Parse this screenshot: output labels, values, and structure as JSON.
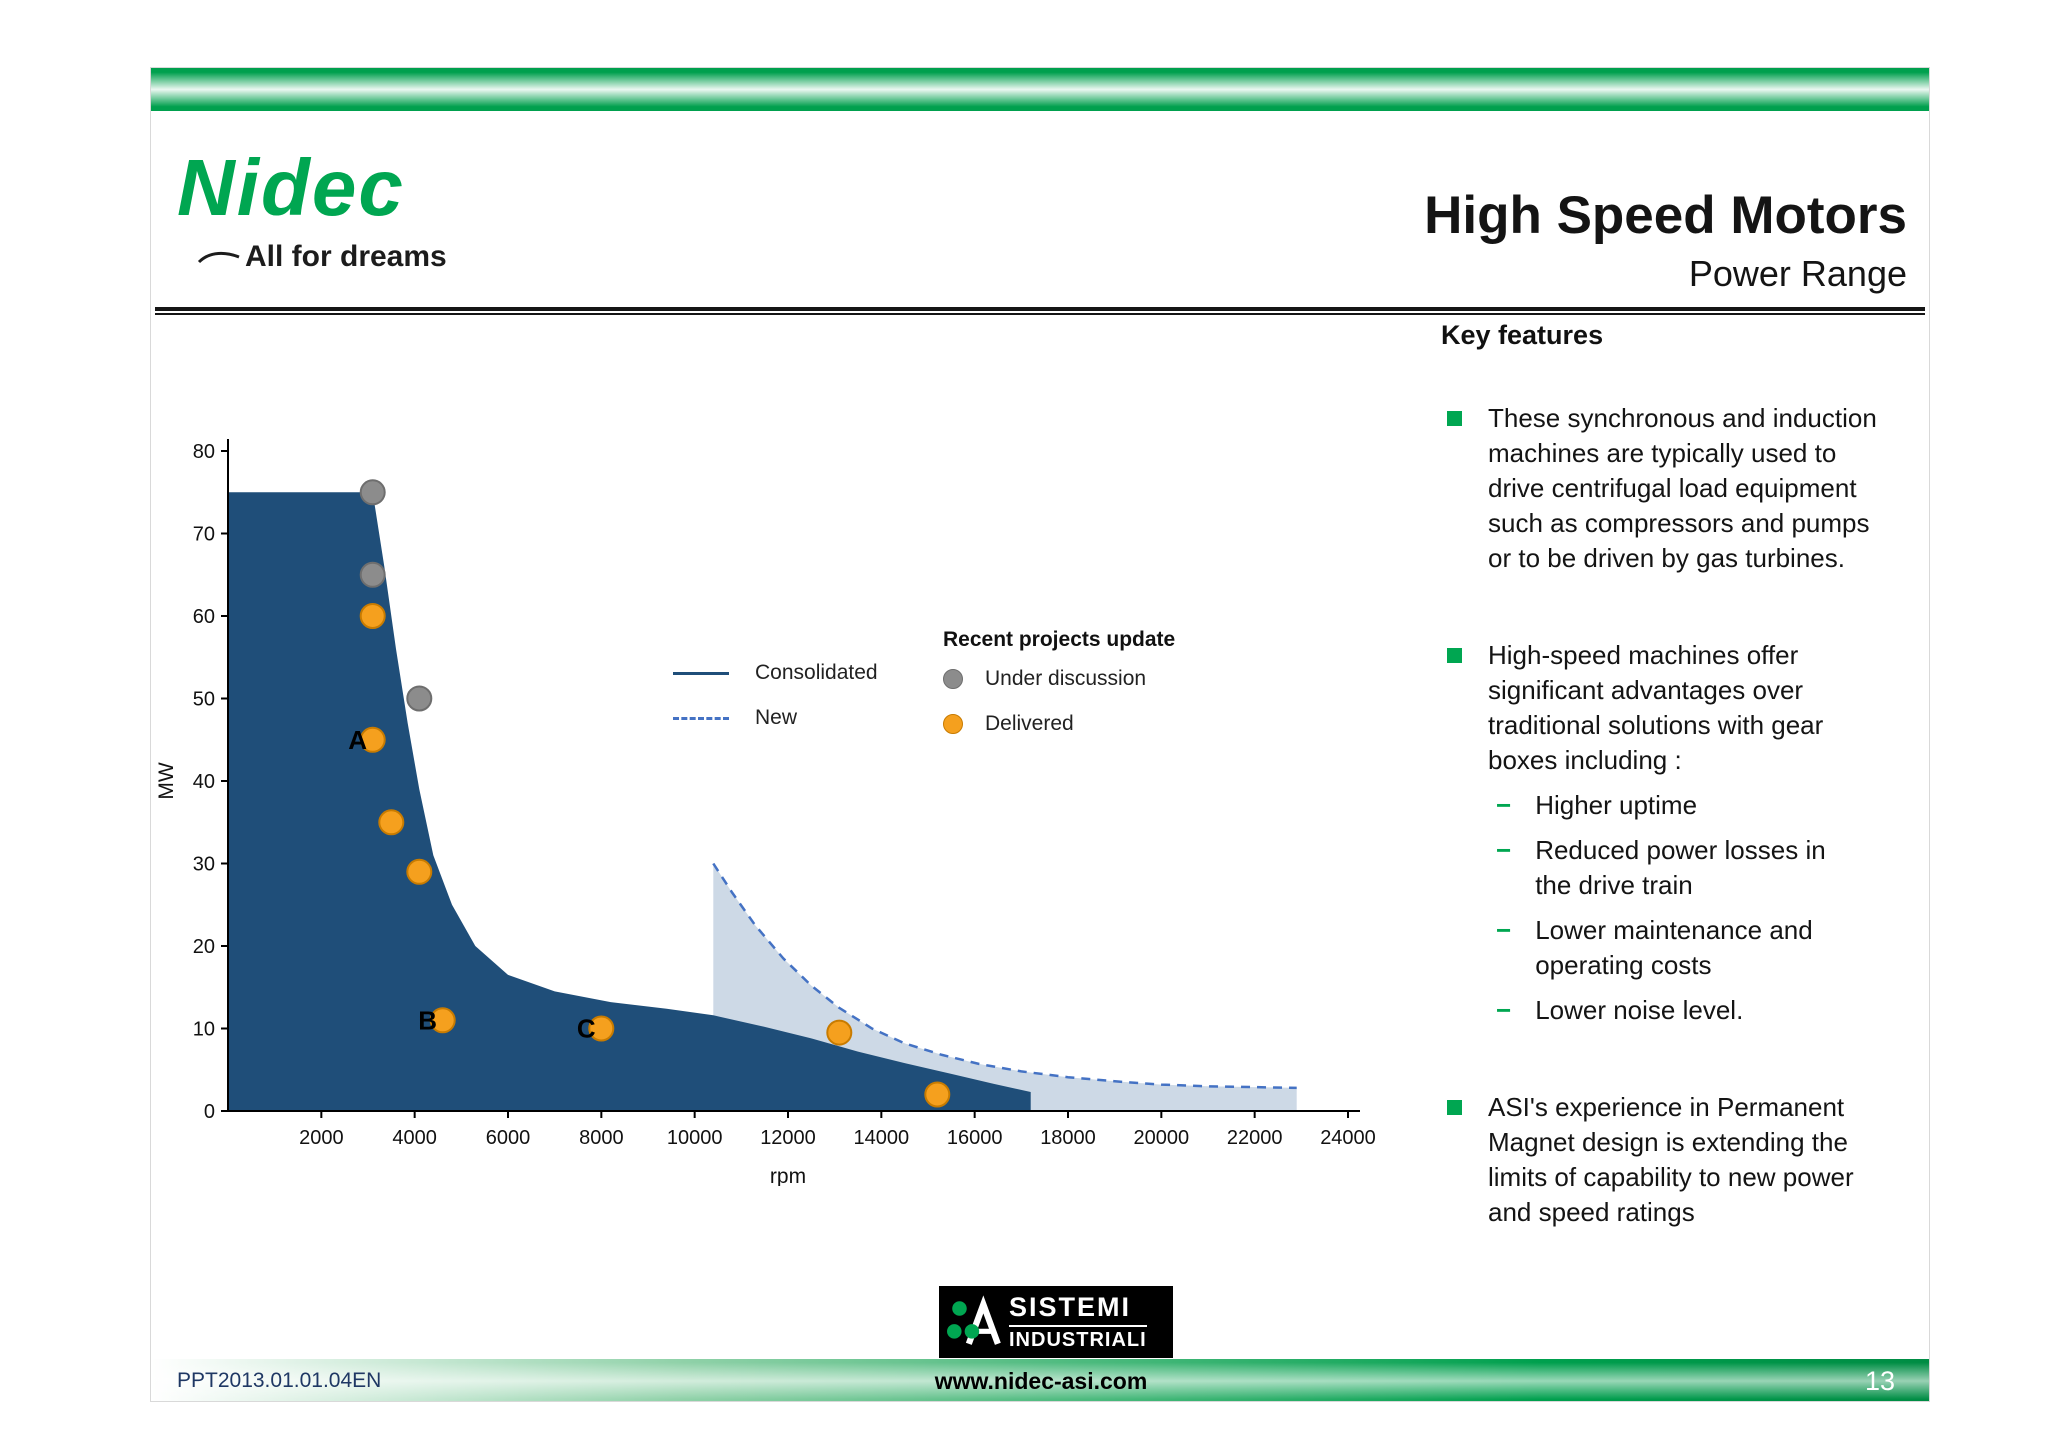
{
  "brand": {
    "logo_text": "Nidec",
    "tagline": "All for dreams"
  },
  "header": {
    "title": "High Speed Motors",
    "subtitle": "Power Range"
  },
  "key_features": {
    "heading": "Key features",
    "sub_marker": "−",
    "bullets": [
      {
        "text": "These synchronous and induction machines are typically used to drive centrifugal load equipment such as compressors and pumps or to be driven by gas turbines.",
        "sub": []
      },
      {
        "text": "High-speed machines offer significant advantages over traditional solutions with gear boxes including :",
        "sub": [
          "Higher uptime",
          "Reduced power losses in the drive train",
          "Lower maintenance and operating costs",
          "Lower noise level."
        ]
      },
      {
        "text": "ASI's experience in Permanent Magnet design is extending the limits of capability to new power and speed ratings",
        "sub": []
      }
    ]
  },
  "chart_data": {
    "type": "area",
    "xlabel": "rpm",
    "ylabel": "MW",
    "xlim": [
      0,
      24000
    ],
    "ylim": [
      0,
      80
    ],
    "x_ticks": [
      2000,
      4000,
      6000,
      8000,
      10000,
      12000,
      14000,
      16000,
      18000,
      20000,
      22000,
      24000
    ],
    "y_ticks": [
      0,
      10,
      20,
      30,
      40,
      50,
      60,
      70,
      80
    ],
    "series": [
      {
        "name": "Consolidated",
        "z": 2,
        "fill": "#1F4E79",
        "points": [
          [
            0,
            75
          ],
          [
            3100,
            75
          ],
          [
            3350,
            66
          ],
          [
            3600,
            56
          ],
          [
            3850,
            47
          ],
          [
            4100,
            39
          ],
          [
            4400,
            31
          ],
          [
            4800,
            25
          ],
          [
            5300,
            20
          ],
          [
            6000,
            16.5
          ],
          [
            7000,
            14.5
          ],
          [
            8200,
            13.2
          ],
          [
            9400,
            12.4
          ],
          [
            10400,
            11.6
          ],
          [
            11500,
            10.2
          ],
          [
            12500,
            8.8
          ],
          [
            13500,
            7.2
          ],
          [
            14500,
            5.8
          ],
          [
            15500,
            4.5
          ],
          [
            16400,
            3.3
          ],
          [
            17200,
            2.3
          ]
        ]
      },
      {
        "name": "New",
        "z": 1,
        "fill": "#CDD9E6",
        "stroke": "#4472C4",
        "dash": "9 7",
        "points": [
          [
            10400,
            30
          ],
          [
            10800,
            26.5
          ],
          [
            11300,
            22.5
          ],
          [
            11900,
            18.5
          ],
          [
            12500,
            15.2
          ],
          [
            13100,
            12.5
          ],
          [
            13800,
            10
          ],
          [
            14500,
            8.2
          ],
          [
            15300,
            6.8
          ],
          [
            16100,
            5.7
          ],
          [
            17000,
            4.8
          ],
          [
            18000,
            4.1
          ],
          [
            19000,
            3.6
          ],
          [
            20000,
            3.2
          ],
          [
            21000,
            3
          ],
          [
            22000,
            2.9
          ],
          [
            22900,
            2.8
          ]
        ]
      }
    ],
    "marker_styles": {
      "under_discussion": {
        "fill": "#8C8C8C",
        "stroke": "#6E6E6E"
      },
      "delivered": {
        "fill": "#F5A01E",
        "stroke": "#C87B00"
      }
    },
    "markers": [
      {
        "rpm": 3100,
        "mw": 75,
        "status": "under_discussion"
      },
      {
        "rpm": 3100,
        "mw": 65,
        "status": "under_discussion"
      },
      {
        "rpm": 3100,
        "mw": 60,
        "status": "delivered"
      },
      {
        "rpm": 4100,
        "mw": 50,
        "status": "under_discussion"
      },
      {
        "rpm": 3100,
        "mw": 45,
        "status": "delivered",
        "label": "A"
      },
      {
        "rpm": 3500,
        "mw": 35,
        "status": "delivered"
      },
      {
        "rpm": 4100,
        "mw": 29,
        "status": "delivered"
      },
      {
        "rpm": 4600,
        "mw": 11,
        "status": "delivered",
        "label": "B"
      },
      {
        "rpm": 8000,
        "mw": 10,
        "status": "delivered",
        "label": "C"
      },
      {
        "rpm": 13100,
        "mw": 9.5,
        "status": "delivered"
      },
      {
        "rpm": 15200,
        "mw": 2,
        "status": "delivered"
      }
    ],
    "legend": {
      "header": "Recent projects update",
      "line_items": [
        {
          "label": "Consolidated",
          "style": "solid"
        },
        {
          "label": "New",
          "style": "dashed"
        }
      ],
      "dot_items": [
        {
          "label": "Under discussion",
          "status": "under_discussion"
        },
        {
          "label": "Delivered",
          "status": "delivered"
        }
      ]
    }
  },
  "footer_logo": {
    "line1": "SISTEMI",
    "line2": "INDUSTRIALI"
  },
  "footer": {
    "page_code": "PPT2013.01.01.04EN",
    "website": "www.nidec-asi.com",
    "page_number": "13"
  },
  "colors": {
    "brand_green": "#00A650",
    "consolidated_navy": "#1F4E79",
    "new_area_blue": "#CDD9E6",
    "new_dash_blue": "#4472C4",
    "delivered_orange": "#F5A01E",
    "under_discussion_gray": "#8C8C8C"
  }
}
